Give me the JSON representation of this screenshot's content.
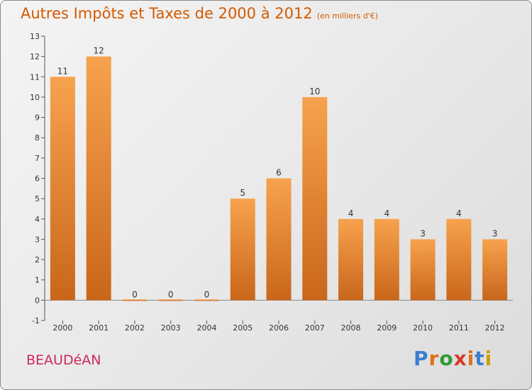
{
  "header": {
    "title": "Autres Impôts et Taxes de 2000 à 2012",
    "unit": "(en milliers d'€)"
  },
  "commune": "BEAUDéAN",
  "logo": {
    "text": "Proxiti",
    "letters": [
      "P",
      "r",
      "o",
      "x",
      "i",
      "t",
      "i"
    ]
  },
  "colors": {
    "title": "#d35a00",
    "commune": "#cc2a58",
    "bar_top": "#f7a24e",
    "bar_bottom": "#c9661a",
    "axis": "#555555"
  },
  "chart_data": {
    "type": "bar",
    "title": "Autres Impôts et Taxes de 2000 à 2012",
    "subtitle": "(en milliers d'€)",
    "categories": [
      "2000",
      "2001",
      "2002",
      "2003",
      "2004",
      "2005",
      "2006",
      "2007",
      "2008",
      "2009",
      "2010",
      "2011",
      "2012"
    ],
    "values": [
      11,
      12,
      0,
      0,
      0,
      5,
      6,
      10,
      4,
      4,
      3,
      4,
      3
    ],
    "data_labels": [
      "11",
      "12",
      "0",
      "0",
      "0",
      "5",
      "6",
      "10",
      "4",
      "4",
      "3",
      "4",
      "3"
    ],
    "y_ticks": [
      "-1",
      "0",
      "1",
      "2",
      "3",
      "4",
      "5",
      "6",
      "7",
      "8",
      "9",
      "10",
      "11",
      "12",
      "13"
    ],
    "ylim": [
      -1,
      13
    ],
    "grid": false,
    "legend": "none"
  }
}
